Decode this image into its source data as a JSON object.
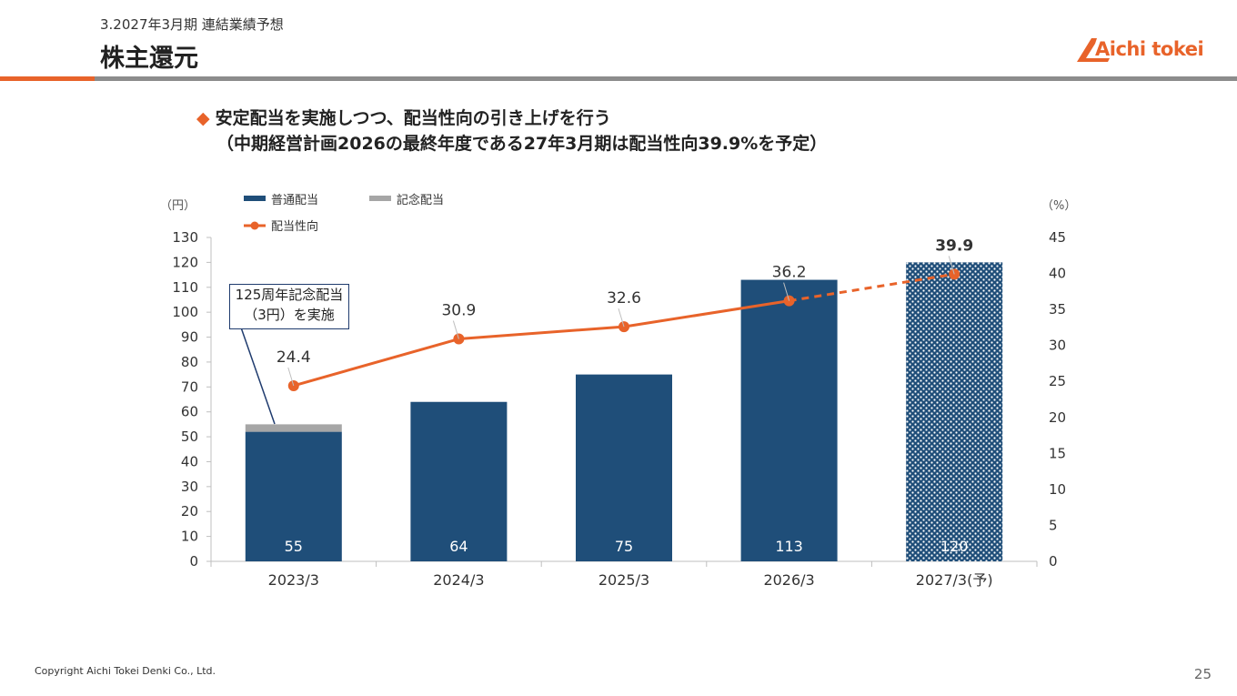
{
  "header": {
    "section": "3.2027年3月期 連結業績予想",
    "title": "株主還元",
    "logo_text": "Aichi tokei"
  },
  "bullet": {
    "line1": "安定配当を実施しつつ、配当性向の引き上げを行う",
    "line2": "（中期経営計画2026の最終年度である27年3月期は配当性向39.9%を予定）"
  },
  "annotation": {
    "line1": "125周年記念配当",
    "line2": "（3円）を実施"
  },
  "footer": {
    "copyright": "Copyright Aichi Tokei Denki Co., Ltd.",
    "page": "25"
  },
  "colors": {
    "accent": "#e8632a",
    "bar": "#1f4e79",
    "commemorative": "#a6a6a6",
    "rule": "#8c8c8c"
  },
  "chart_data": {
    "type": "bar",
    "categories": [
      "2023/3",
      "2024/3",
      "2025/3",
      "2026/3",
      "2027/3(予)"
    ],
    "y_left_label": "（円）",
    "y_right_label": "（%）",
    "ylim_left": [
      0,
      130
    ],
    "ylim_right": [
      0,
      45
    ],
    "yticks_left": [
      0,
      10,
      20,
      30,
      40,
      50,
      60,
      70,
      80,
      90,
      100,
      110,
      120,
      130
    ],
    "yticks_right": [
      0,
      5,
      10,
      15,
      20,
      25,
      30,
      35,
      40,
      45
    ],
    "legend": [
      "普通配当",
      "記念配当",
      "配当性向"
    ],
    "legend_position": "top-left",
    "series": [
      {
        "name": "普通配当",
        "kind": "bar",
        "values": [
          52,
          64,
          75,
          113,
          120
        ]
      },
      {
        "name": "記念配当",
        "kind": "bar-stacked",
        "values": [
          3,
          0,
          0,
          0,
          0
        ]
      },
      {
        "name": "配当性向",
        "kind": "line",
        "axis": "right",
        "values": [
          24.4,
          30.9,
          32.6,
          36.2,
          39.9
        ]
      }
    ],
    "bar_total_labels": [
      "55",
      "64",
      "75",
      "113",
      "120"
    ],
    "line_labels": [
      "24.4",
      "30.9",
      "32.6",
      "36.2",
      "39.9"
    ],
    "forecast_index": 4
  }
}
